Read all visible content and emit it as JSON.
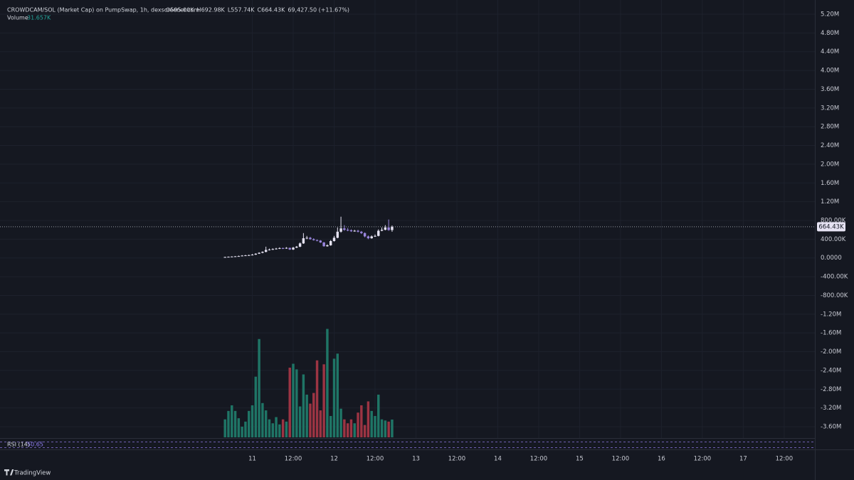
{
  "chart_data": {
    "type": "candlestick",
    "title": "CROWDCAM/SOL (Market Cap) on PumpSwap, 1h, dexscreener.com",
    "ohlc_header": [
      "O595.00K",
      "H692.98K",
      "L557.74K",
      "C664.43K",
      "69,427.50 (+11.67%)"
    ],
    "volume_title": "Volume",
    "volume_label": "31.657K",
    "rsi_title": "RSI (14)",
    "rsi_label": "50.65",
    "last_label": "664.43K",
    "brand": "TradingView",
    "up_color": "#e6e3f3",
    "down_color": "#9a86de",
    "volume_up_color": "#1f7566",
    "volume_down_color": "#9c3443",
    "grid": true,
    "xlim": [
      -74,
      165
    ],
    "xticks": [
      {
        "value": 0,
        "label": "11"
      },
      {
        "value": 12,
        "label": "12:00"
      },
      {
        "value": 24,
        "label": "12"
      },
      {
        "value": 36,
        "label": "12:00"
      },
      {
        "value": 48,
        "label": "13"
      },
      {
        "value": 60,
        "label": "12:00"
      },
      {
        "value": 72,
        "label": "14"
      },
      {
        "value": 84,
        "label": "12:00"
      },
      {
        "value": 96,
        "label": "15"
      },
      {
        "value": 108,
        "label": "12:00"
      },
      {
        "value": 120,
        "label": "16"
      },
      {
        "value": 132,
        "label": "12:00"
      },
      {
        "value": 144,
        "label": "17"
      },
      {
        "value": 156,
        "label": "12:00"
      }
    ],
    "ylim": [
      -3600,
      5200
    ],
    "yticks": [
      {
        "value": 5200,
        "label": "5.20M"
      },
      {
        "value": 4800,
        "label": "4.80M"
      },
      {
        "value": 4400,
        "label": "4.40M"
      },
      {
        "value": 4000,
        "label": "4.00M"
      },
      {
        "value": 3600,
        "label": "3.60M"
      },
      {
        "value": 3200,
        "label": "3.20M"
      },
      {
        "value": 2800,
        "label": "2.80M"
      },
      {
        "value": 2400,
        "label": "2.40M"
      },
      {
        "value": 2000,
        "label": "2.00M"
      },
      {
        "value": 1600,
        "label": "1.60M"
      },
      {
        "value": 1200,
        "label": "1.20M"
      },
      {
        "value": 800,
        "label": "800.00K"
      },
      {
        "value": 400,
        "label": "400.00K"
      },
      {
        "value": 0,
        "label": "0.0000"
      },
      {
        "value": -400,
        "label": "-400.00K"
      },
      {
        "value": -800,
        "label": "-800.00K"
      },
      {
        "value": -1200,
        "label": "-1.20M"
      },
      {
        "value": -1600,
        "label": "-1.60M"
      },
      {
        "value": -2000,
        "label": "-2.00M"
      },
      {
        "value": -2400,
        "label": "-2.40M"
      },
      {
        "value": -2800,
        "label": "-2.80M"
      },
      {
        "value": -3200,
        "label": "-3.20M"
      },
      {
        "value": -3600,
        "label": "-3.60M"
      }
    ],
    "x": [
      -8,
      -7,
      -6,
      -5,
      -4,
      -3,
      -2,
      -1,
      0,
      1,
      2,
      3,
      4,
      5,
      6,
      7,
      8,
      9,
      10,
      11,
      12,
      13,
      14,
      15,
      16,
      17,
      18,
      19,
      20,
      21,
      22,
      23,
      24,
      25,
      26,
      27,
      28,
      29,
      30,
      31,
      32,
      33,
      34,
      35,
      36,
      37,
      38,
      39,
      40,
      41
    ],
    "open": [
      15,
      20,
      25,
      30,
      35,
      40,
      50,
      55,
      60,
      70,
      90,
      110,
      130,
      170,
      180,
      190,
      200,
      210,
      205,
      215,
      180,
      220,
      240,
      310,
      420,
      430,
      400,
      380,
      370,
      330,
      250,
      270,
      360,
      430,
      560,
      630,
      600,
      590,
      570,
      580,
      560,
      530,
      460,
      420,
      460,
      470,
      580,
      600,
      650,
      595
    ],
    "high": [
      25,
      30,
      35,
      40,
      50,
      60,
      65,
      70,
      85,
      100,
      120,
      140,
      240,
      200,
      205,
      215,
      225,
      220,
      230,
      220,
      235,
      255,
      330,
      530,
      470,
      450,
      420,
      395,
      380,
      340,
      290,
      380,
      470,
      650,
      880,
      700,
      640,
      610,
      600,
      600,
      575,
      545,
      480,
      480,
      500,
      610,
      650,
      700,
      820,
      692.98
    ],
    "low": [
      10,
      15,
      20,
      25,
      30,
      35,
      45,
      50,
      55,
      65,
      85,
      100,
      120,
      160,
      170,
      180,
      190,
      190,
      195,
      170,
      170,
      210,
      230,
      300,
      400,
      390,
      370,
      355,
      320,
      240,
      240,
      260,
      350,
      420,
      540,
      580,
      570,
      555,
      560,
      545,
      510,
      440,
      400,
      410,
      450,
      460,
      570,
      590,
      580,
      557.74
    ],
    "close": [
      20,
      25,
      30,
      35,
      40,
      50,
      55,
      60,
      70,
      90,
      110,
      130,
      170,
      180,
      190,
      200,
      210,
      205,
      215,
      180,
      220,
      240,
      310,
      420,
      430,
      400,
      380,
      370,
      330,
      250,
      270,
      360,
      430,
      560,
      630,
      600,
      590,
      570,
      580,
      560,
      530,
      460,
      420,
      460,
      470,
      580,
      600,
      650,
      595,
      664.43
    ],
    "volume": [
      32,
      47,
      57,
      47,
      34,
      19,
      28,
      47,
      57,
      108,
      175,
      61,
      48,
      32,
      25,
      36,
      23,
      32,
      28,
      124,
      131,
      121,
      55,
      112,
      76,
      60,
      79,
      137,
      48,
      130,
      193,
      38,
      140,
      149,
      51,
      32,
      25,
      32,
      25,
      44,
      57,
      22,
      64,
      47,
      38,
      76,
      32,
      30,
      28,
      31.657
    ]
  }
}
